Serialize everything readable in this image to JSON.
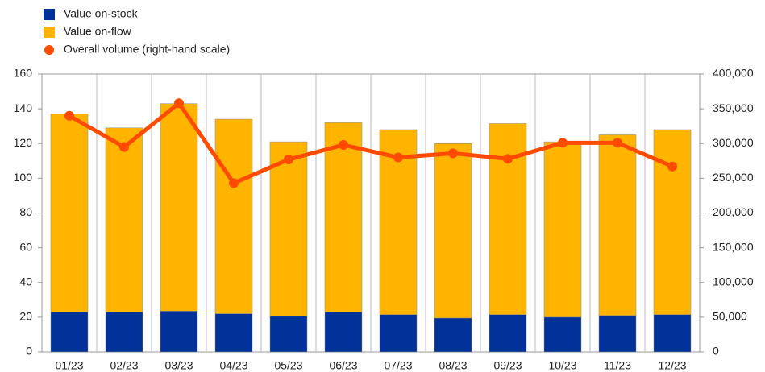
{
  "chart_data": {
    "type": "bar",
    "stacked": true,
    "categories": [
      "01/23",
      "02/23",
      "03/23",
      "04/23",
      "05/23",
      "06/23",
      "07/23",
      "08/23",
      "09/23",
      "10/23",
      "11/23",
      "12/23"
    ],
    "series": [
      {
        "name": "Value on-stock",
        "color": "#003299",
        "values": [
          23,
          23,
          23.5,
          22,
          20.5,
          23,
          21.5,
          19.5,
          21.5,
          20,
          21,
          21.5
        ]
      },
      {
        "name": "Value on-flow",
        "color": "#FFB400",
        "values": [
          114,
          106,
          119.5,
          112,
          100.5,
          109,
          106.5,
          100.5,
          110,
          101,
          104,
          106.5
        ]
      },
      {
        "name": "Overall volume (right-hand scale)",
        "color": "#FF4B00",
        "type": "line",
        "axis": "y2",
        "values": [
          340000,
          295000,
          358000,
          243000,
          277000,
          298000,
          280000,
          286000,
          278000,
          301000,
          301000,
          267000
        ]
      }
    ],
    "ylim": [
      0,
      160
    ],
    "yticks": [
      0,
      20,
      40,
      60,
      80,
      100,
      120,
      140,
      160
    ],
    "y2lim": [
      0,
      400000
    ],
    "y2ticks": [
      0,
      {
        "value": 50000,
        "label": "50,000"
      },
      {
        "value": 100000,
        "label": "100,000"
      },
      {
        "value": 150000,
        "label": "150,000"
      },
      {
        "value": 200000,
        "label": "200,000"
      },
      {
        "value": 250000,
        "label": "250,000"
      },
      {
        "value": 300000,
        "label": "300,000"
      },
      {
        "value": 350000,
        "label": "350,000"
      },
      {
        "value": 400000,
        "label": "400,000"
      }
    ],
    "legend": "top-left"
  }
}
